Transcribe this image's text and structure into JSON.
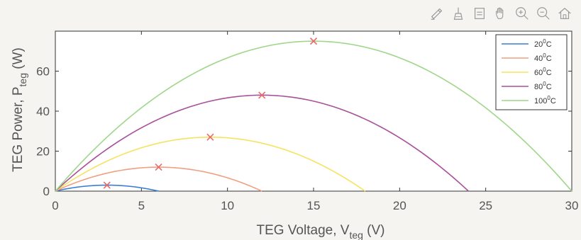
{
  "toolbar": {
    "tools": [
      {
        "name": "edit-plot-icon"
      },
      {
        "name": "brush-icon"
      },
      {
        "name": "data-cursor-icon"
      },
      {
        "name": "pan-hand-icon"
      },
      {
        "name": "zoom-in-icon"
      },
      {
        "name": "zoom-out-icon"
      },
      {
        "name": "home-icon"
      }
    ]
  },
  "chart_data": {
    "type": "line",
    "xlabel": "TEG Voltage, V",
    "xlabel_sub": "teg",
    "xlabel_unit": " (V)",
    "ylabel": "TEG Power, P",
    "ylabel_sub": "teg",
    "ylabel_unit": " (W)",
    "xlim": [
      0,
      30
    ],
    "ylim": [
      0,
      80
    ],
    "xticks": [
      0,
      5,
      10,
      15,
      20,
      25,
      30
    ],
    "yticks": [
      0,
      20,
      40,
      60
    ],
    "grid": false,
    "legend_position": "top-right",
    "series": [
      {
        "name": "20",
        "name_sup": "0",
        "name_unit": "C",
        "color": "#3a7fd5",
        "vmax": 6,
        "pmax": 3
      },
      {
        "name": "40",
        "name_sup": "0",
        "name_unit": "C",
        "color": "#f0a080",
        "vmax": 12,
        "pmax": 12
      },
      {
        "name": "60",
        "name_sup": "0",
        "name_unit": "C",
        "color": "#f5e360",
        "vmax": 18,
        "pmax": 27
      },
      {
        "name": "80",
        "name_sup": "0",
        "name_unit": "C",
        "color": "#a8509a",
        "vmax": 24,
        "pmax": 48
      },
      {
        "name": "100",
        "name_sup": "0",
        "name_unit": "C",
        "color": "#9fd68a",
        "vmax": 30,
        "pmax": 75
      }
    ],
    "mpp_points": [
      {
        "x": 3,
        "y": 3
      },
      {
        "x": 6,
        "y": 12
      },
      {
        "x": 9,
        "y": 27
      },
      {
        "x": 12,
        "y": 48
      },
      {
        "x": 15,
        "y": 75
      }
    ],
    "mpp_color": "#e86a6a"
  }
}
